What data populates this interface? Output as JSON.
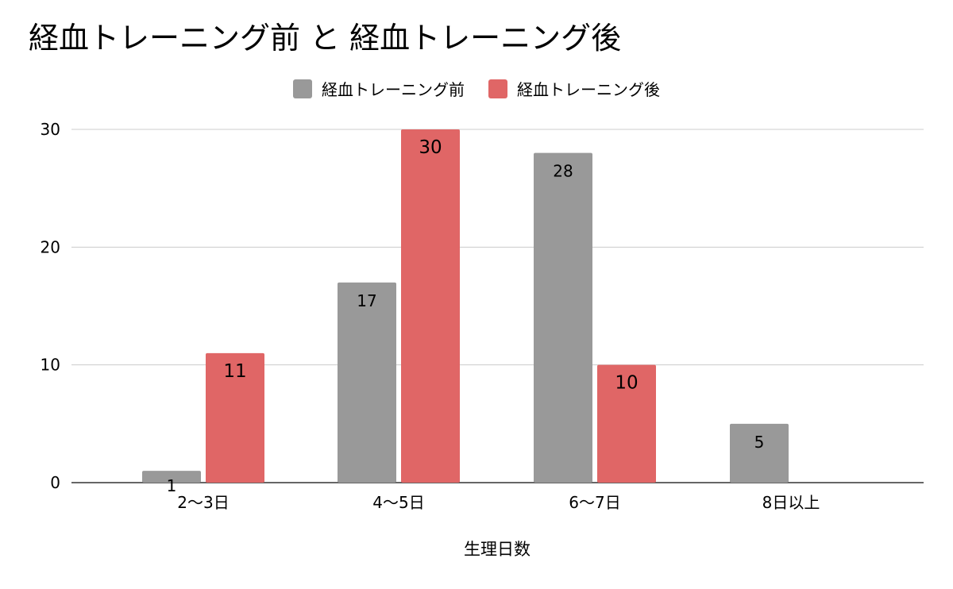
{
  "chart_data": {
    "type": "bar",
    "title": "経血トレーニング前 と 経血トレーニング後",
    "xlabel": "生理日数",
    "ylabel": "",
    "categories": [
      "2〜3日",
      "4〜5日",
      "6〜7日",
      "8日以上"
    ],
    "series": [
      {
        "name": "経血トレーニング前",
        "values": [
          1,
          17,
          28,
          5
        ],
        "color": "#999999"
      },
      {
        "name": "経血トレーニング後",
        "values": [
          11,
          30,
          10,
          null
        ],
        "color": "#e06666"
      }
    ],
    "ylim": [
      0,
      30
    ],
    "yticks": [
      0,
      10,
      20,
      30
    ],
    "grid": true,
    "legend": "top-center",
    "data_labels": true
  }
}
